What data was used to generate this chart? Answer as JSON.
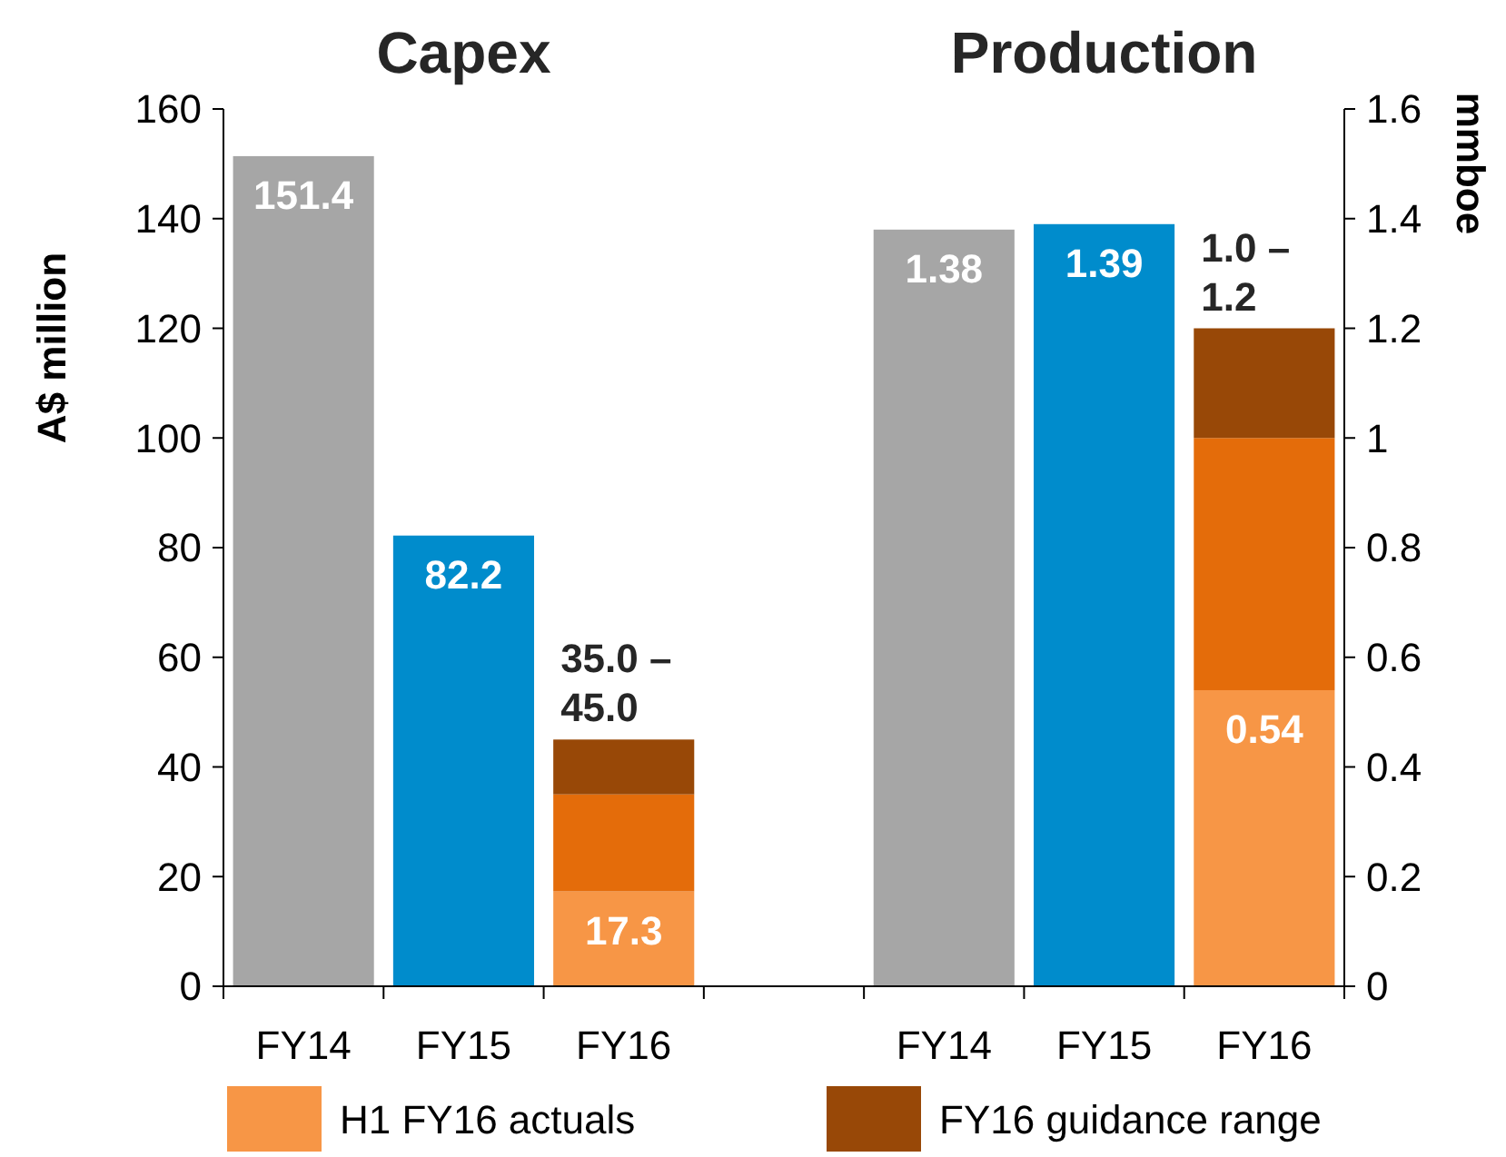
{
  "chart_data": {
    "type": "bar",
    "stacked": true,
    "ylabel": "A$ million",
    "y2label": "mmboe",
    "categories": [
      "FY14",
      "FY15",
      "FY16",
      null,
      "FY14",
      "FY15",
      "FY16"
    ],
    "ylim": [
      0,
      160
    ],
    "yticks": [
      0,
      20,
      40,
      60,
      80,
      100,
      120,
      140,
      160
    ],
    "y2lim": [
      0,
      1.6
    ],
    "y2ticks": [
      0,
      0.2,
      0.4,
      0.6,
      0.8,
      1,
      1.2,
      1.4,
      1.6
    ],
    "legend": "bottom",
    "annotations": [
      "Capex",
      "Production",
      "35.0 – 45.0",
      "1.0 – 1.2"
    ],
    "series": [
      {
        "colors": [
          "#a6a6a6",
          "#008ccc",
          null,
          null,
          null,
          null,
          null
        ],
        "values": [
          151.4,
          82.2,
          null,
          null,
          null,
          null,
          null
        ],
        "value_labels": [
          "151.4",
          "82.2",
          null,
          null,
          null,
          null,
          null
        ]
      },
      {
        "name": "H1 FY16 actuals",
        "color": "#f79646",
        "values": [
          null,
          null,
          17.3,
          null,
          null,
          null,
          null
        ],
        "value_labels": [
          null,
          null,
          "17.3",
          null,
          null,
          null,
          null
        ]
      },
      {
        "color": "#e46c0a",
        "values": [
          null,
          null,
          17.7,
          null,
          null,
          null,
          null
        ]
      },
      {
        "name": "FY16 guidance range",
        "color": "#984807",
        "values": [
          null,
          null,
          10,
          null,
          null,
          null,
          null
        ]
      },
      {
        "axis": "y2",
        "colors": [
          null,
          null,
          null,
          null,
          "#a6a6a6",
          "#008ccc",
          null
        ],
        "values": [
          null,
          null,
          null,
          null,
          1.38,
          1.39,
          null
        ],
        "value_labels": [
          null,
          null,
          null,
          null,
          "1.38",
          "1.39",
          null
        ]
      },
      {
        "axis": "y2",
        "color": "#f79646",
        "values": [
          null,
          null,
          null,
          null,
          null,
          null,
          0.54
        ],
        "value_labels": [
          null,
          null,
          null,
          null,
          null,
          null,
          "0.54"
        ]
      },
      {
        "axis": "y2",
        "color": "#e46c0a",
        "values": [
          null,
          null,
          null,
          null,
          null,
          null,
          0.46
        ]
      },
      {
        "axis": "y2",
        "color": "#984807",
        "values": [
          null,
          null,
          null,
          null,
          null,
          null,
          0.2
        ]
      }
    ]
  }
}
